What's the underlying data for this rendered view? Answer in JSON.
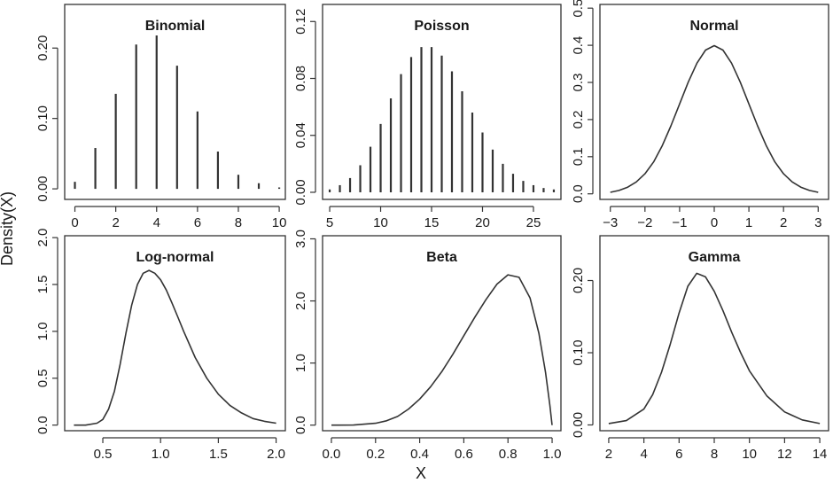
{
  "figure": {
    "ylabel": "Density(X)",
    "xlabel": "X"
  },
  "chart_data": [
    {
      "type": "bar",
      "title": "Binomial",
      "xlim": [
        -0.5,
        10.3
      ],
      "ylim": [
        -0.015,
        0.262
      ],
      "x": [
        0,
        1,
        2,
        3,
        4,
        5,
        6,
        7,
        8,
        9,
        10
      ],
      "values": [
        0.01,
        0.058,
        0.135,
        0.205,
        0.218,
        0.175,
        0.11,
        0.053,
        0.02,
        0.008,
        0.002
      ],
      "xticks": [
        0,
        2,
        4,
        6,
        8,
        10
      ],
      "xtick_labels": [
        "0",
        "2",
        "4",
        "6",
        "8",
        "10"
      ],
      "yticks": [
        0.0,
        0.1,
        0.2
      ],
      "ytick_labels": [
        "0.00",
        "0.10",
        "0.20"
      ]
    },
    {
      "type": "bar",
      "title": "Poisson",
      "xlim": [
        4.3,
        27.7
      ],
      "ylim": [
        -0.005,
        0.132
      ],
      "x": [
        5,
        6,
        7,
        8,
        9,
        10,
        11,
        12,
        13,
        14,
        15,
        16,
        17,
        18,
        19,
        20,
        21,
        22,
        23,
        24,
        25,
        26,
        27
      ],
      "values": [
        0.002,
        0.005,
        0.01,
        0.019,
        0.032,
        0.048,
        0.066,
        0.083,
        0.095,
        0.102,
        0.102,
        0.096,
        0.085,
        0.071,
        0.056,
        0.042,
        0.03,
        0.02,
        0.013,
        0.008,
        0.005,
        0.003,
        0.002
      ],
      "xticks": [
        5,
        10,
        15,
        20,
        25
      ],
      "xtick_labels": [
        "5",
        "10",
        "15",
        "20",
        "25"
      ],
      "yticks": [
        0.0,
        0.04,
        0.08,
        0.12
      ],
      "ytick_labels": [
        "0.00",
        "0.04",
        "0.08",
        "0.12"
      ]
    },
    {
      "type": "line",
      "title": "Normal",
      "xlim": [
        -3.3,
        3.3
      ],
      "ylim": [
        -0.015,
        0.51
      ],
      "x": [
        -3.0,
        -2.75,
        -2.5,
        -2.25,
        -2.0,
        -1.75,
        -1.5,
        -1.25,
        -1.0,
        -0.75,
        -0.5,
        -0.25,
        0.0,
        0.25,
        0.5,
        0.75,
        1.0,
        1.25,
        1.5,
        1.75,
        2.0,
        2.25,
        2.5,
        2.75,
        3.0
      ],
      "y": [
        0.004,
        0.009,
        0.018,
        0.032,
        0.054,
        0.086,
        0.13,
        0.183,
        0.242,
        0.301,
        0.352,
        0.387,
        0.399,
        0.387,
        0.352,
        0.301,
        0.242,
        0.183,
        0.13,
        0.086,
        0.054,
        0.032,
        0.018,
        0.009,
        0.004
      ],
      "xticks": [
        -3,
        -2,
        -1,
        0,
        1,
        2,
        3
      ],
      "xtick_labels": [
        "−3",
        "−2",
        "−1",
        "0",
        "1",
        "2",
        "3"
      ],
      "yticks": [
        0.0,
        0.1,
        0.2,
        0.3,
        0.4,
        0.5
      ],
      "ytick_labels": [
        "0.0",
        "0.1",
        "0.2",
        "0.3",
        "0.4",
        "0.5"
      ]
    },
    {
      "type": "line",
      "title": "Log-normal",
      "xlim": [
        0.17,
        2.08
      ],
      "ylim": [
        -0.06,
        2.02
      ],
      "x": [
        0.25,
        0.35,
        0.45,
        0.5,
        0.55,
        0.6,
        0.65,
        0.7,
        0.75,
        0.8,
        0.85,
        0.9,
        0.95,
        1.0,
        1.05,
        1.1,
        1.15,
        1.2,
        1.3,
        1.4,
        1.5,
        1.6,
        1.7,
        1.8,
        1.9,
        2.0
      ],
      "y": [
        0.0,
        0.0,
        0.02,
        0.06,
        0.17,
        0.36,
        0.65,
        0.98,
        1.28,
        1.5,
        1.62,
        1.65,
        1.62,
        1.55,
        1.44,
        1.3,
        1.15,
        1.0,
        0.72,
        0.5,
        0.33,
        0.21,
        0.13,
        0.07,
        0.04,
        0.02
      ],
      "xticks": [
        0.5,
        1.0,
        1.5,
        2.0
      ],
      "xtick_labels": [
        "0.5",
        "1.0",
        "1.5",
        "2.0"
      ],
      "yticks": [
        0.0,
        0.5,
        1.0,
        1.5,
        2.0
      ],
      "ytick_labels": [
        "0.0",
        "0.5",
        "1.0",
        "1.5",
        "2.0"
      ]
    },
    {
      "type": "line",
      "title": "Beta",
      "xlim": [
        -0.04,
        1.04
      ],
      "ylim": [
        -0.09,
        3.05
      ],
      "x": [
        0.0,
        0.1,
        0.2,
        0.25,
        0.3,
        0.35,
        0.4,
        0.45,
        0.5,
        0.55,
        0.6,
        0.65,
        0.7,
        0.75,
        0.8,
        0.85,
        0.9,
        0.94,
        0.97,
        0.99,
        1.0
      ],
      "y": [
        0.0,
        0.002,
        0.03,
        0.07,
        0.14,
        0.26,
        0.42,
        0.62,
        0.86,
        1.14,
        1.44,
        1.74,
        2.02,
        2.27,
        2.42,
        2.38,
        2.05,
        1.48,
        0.85,
        0.32,
        0.0
      ],
      "xticks": [
        0.0,
        0.2,
        0.4,
        0.6,
        0.8,
        1.0
      ],
      "xtick_labels": [
        "0.0",
        "0.2",
        "0.4",
        "0.6",
        "0.8",
        "1.0"
      ],
      "yticks": [
        0.0,
        1.0,
        2.0,
        3.0
      ],
      "ytick_labels": [
        "0.0",
        "1.0",
        "2.0",
        "3.0"
      ]
    },
    {
      "type": "line",
      "title": "Gamma",
      "xlim": [
        1.5,
        14.5
      ],
      "ylim": [
        -0.008,
        0.262
      ],
      "x": [
        2,
        3,
        4,
        4.5,
        5,
        5.5,
        6,
        6.5,
        7,
        7.5,
        8,
        8.5,
        9,
        9.5,
        10,
        11,
        12,
        13,
        14
      ],
      "y": [
        0.002,
        0.006,
        0.022,
        0.042,
        0.073,
        0.112,
        0.155,
        0.192,
        0.21,
        0.205,
        0.185,
        0.158,
        0.128,
        0.1,
        0.075,
        0.04,
        0.018,
        0.007,
        0.002
      ],
      "xticks": [
        2,
        4,
        6,
        8,
        10,
        12,
        14
      ],
      "xtick_labels": [
        "2",
        "4",
        "6",
        "8",
        "10",
        "12",
        "14"
      ],
      "yticks": [
        0.0,
        0.1,
        0.2
      ],
      "ytick_labels": [
        "0.00",
        "0.10",
        "0.20"
      ]
    }
  ]
}
